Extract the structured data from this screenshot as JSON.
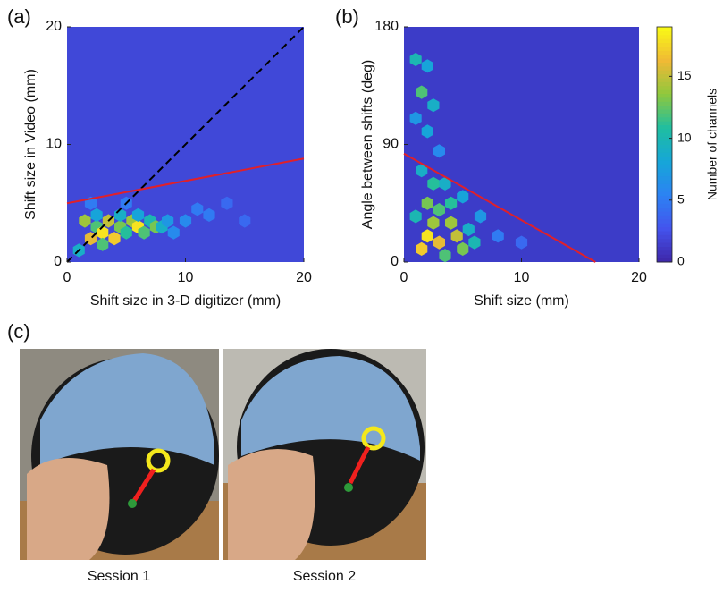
{
  "chart_data": [
    {
      "type": "hexbin",
      "panel_label": "(a)",
      "xlabel": "Shift size in 3-D digitizer (mm)",
      "ylabel": "Shift size in Video (mm)",
      "xlim": [
        0,
        20
      ],
      "ylim": [
        0,
        20
      ],
      "xticks": [
        0,
        10,
        20
      ],
      "yticks": [
        0,
        10,
        20
      ],
      "empty_color": "#4048d8",
      "x": [
        1.5,
        2.5,
        2,
        3,
        3.5,
        4,
        4.5,
        5,
        5.5,
        6,
        6.5,
        7,
        7.5,
        8,
        3,
        2.5,
        4.5,
        6,
        8.5,
        9,
        1,
        10,
        11,
        12,
        13.5,
        2,
        5,
        15
      ],
      "y": [
        3.5,
        3,
        2,
        2.5,
        3.5,
        2,
        3,
        2.5,
        3.5,
        3,
        2.5,
        3.5,
        3,
        3,
        1.5,
        4,
        4,
        4,
        3.5,
        2.5,
        1,
        3.5,
        4.5,
        4,
        5,
        5,
        5,
        3.5
      ],
      "counts": [
        14,
        12,
        16,
        18,
        15,
        17,
        13,
        11,
        14,
        18,
        12,
        10,
        13,
        9,
        12,
        8,
        9,
        8,
        7,
        6,
        9,
        6,
        5,
        5,
        4,
        5,
        5,
        4
      ],
      "lines": [
        {
          "x": [
            0,
            20
          ],
          "y": [
            0,
            20
          ],
          "color": "#000000",
          "dashed": true
        },
        {
          "x": [
            0,
            20
          ],
          "y": [
            5,
            8.8
          ],
          "color": "#e0202a",
          "dashed": false
        }
      ]
    },
    {
      "type": "hexbin",
      "panel_label": "(b)",
      "xlabel": "Shift size (mm)",
      "ylabel": "Angle between shifts (deg)",
      "xlim": [
        0,
        20
      ],
      "ylim": [
        0,
        180
      ],
      "xticks": [
        0,
        10,
        20
      ],
      "yticks": [
        0,
        90,
        180
      ],
      "empty_color": "#3c3cc8",
      "x": [
        1,
        2,
        1.5,
        2.5,
        1,
        2,
        3,
        1.5,
        2.5,
        2,
        3,
        4,
        2,
        3,
        4.5,
        5,
        1.5,
        3.5,
        6,
        2.5,
        4,
        5.5,
        6.5,
        1,
        3.5,
        5,
        8,
        10
      ],
      "y": [
        155,
        150,
        130,
        120,
        110,
        100,
        85,
        70,
        60,
        45,
        40,
        30,
        20,
        15,
        20,
        10,
        10,
        5,
        15,
        30,
        45,
        25,
        35,
        35,
        60,
        50,
        20,
        15
      ],
      "counts": [
        10,
        8,
        12,
        9,
        7,
        8,
        6,
        9,
        11,
        13,
        12,
        14,
        18,
        16,
        15,
        13,
        17,
        12,
        10,
        14,
        11,
        9,
        7,
        10,
        9,
        8,
        5,
        4
      ],
      "lines": [
        {
          "x": [
            0,
            16.3
          ],
          "y": [
            83,
            0
          ],
          "color": "#e0202a",
          "dashed": false
        }
      ],
      "colorbar": {
        "label": "Number of channels",
        "lim": [
          0,
          19
        ],
        "ticks": [
          0,
          5,
          10,
          15
        ]
      }
    }
  ],
  "figure_c": {
    "panel_label": "(c)",
    "captions": [
      "Session 1",
      "Session 2"
    ]
  }
}
